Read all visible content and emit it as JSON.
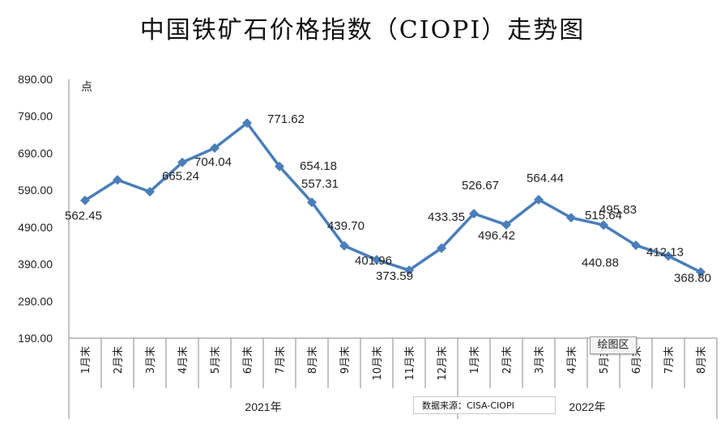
{
  "chart_data": {
    "type": "line",
    "title": "中国铁矿石价格指数（CIOPI）走势图",
    "ylabel": "点",
    "ylim": [
      190,
      890
    ],
    "yticks": [
      "890.00",
      "790.00",
      "690.00",
      "590.00",
      "490.00",
      "390.00",
      "290.00",
      "190.00"
    ],
    "categories": [
      "1月末",
      "2月末",
      "3月末",
      "4月末",
      "5月末",
      "6月末",
      "7月末",
      "8月末",
      "9月末",
      "10月末",
      "11月末",
      "12月末",
      "1月末",
      "2月末",
      "3月末",
      "4月末",
      "5月末",
      "6月末",
      "7月末",
      "8月末"
    ],
    "year_groups": [
      {
        "label": "2021年",
        "start": 0,
        "end": 11
      },
      {
        "label": "2022年",
        "start": 12,
        "end": 19
      }
    ],
    "series": [
      {
        "color": "#4a7ebb",
        "values": [
          562.45,
          618,
          586,
          665.24,
          704.04,
          771.62,
          654.18,
          557.31,
          439.7,
          401.96,
          373.59,
          433.35,
          526.67,
          496.42,
          564.44,
          515.64,
          495.83,
          440.88,
          412.13,
          368.8
        ],
        "labels": [
          "562.45",
          "",
          "",
          "665.24",
          "704.04",
          "771.62",
          "654.18",
          "557.31",
          "439.70",
          "401.96",
          "373.59",
          "433.35",
          "526.67",
          "496.42",
          "564.44",
          "515.64",
          "495.83",
          "440.88",
          "412.13",
          "368.80"
        ]
      }
    ],
    "grid": false
  },
  "tooltip": "绘图区",
  "source_note": "数据来源：CISA-CIOPI"
}
